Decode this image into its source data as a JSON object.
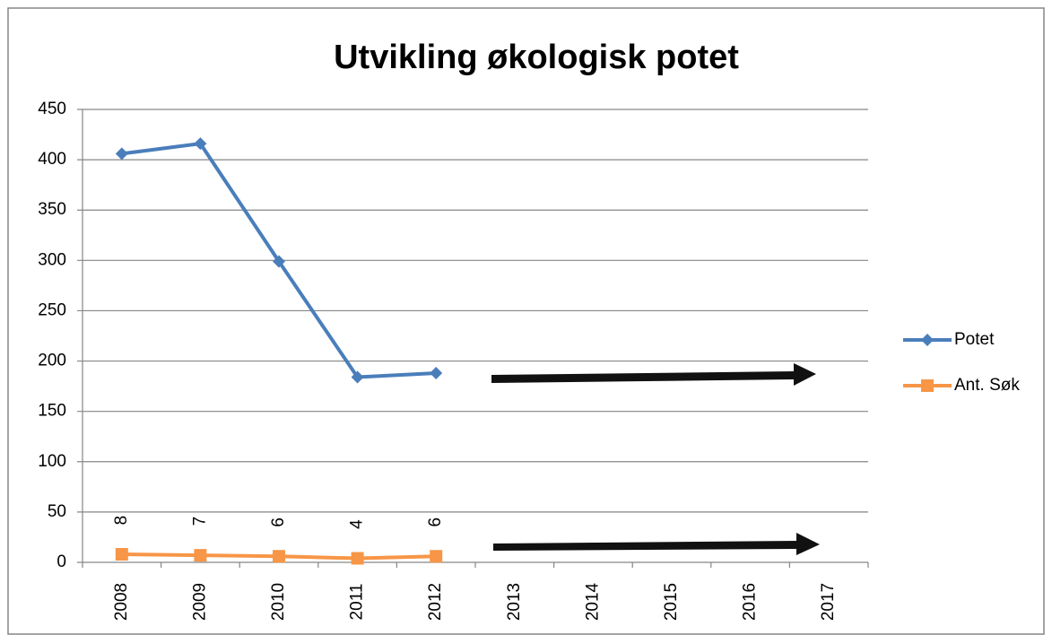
{
  "chart_data": {
    "type": "line",
    "title": "Utvikling økologisk potet",
    "categories": [
      "2008",
      "2009",
      "2010",
      "2011",
      "2012",
      "2013",
      "2014",
      "2015",
      "2016",
      "2017"
    ],
    "series": [
      {
        "name": "Potet",
        "color": "#4a7ebb",
        "marker": "diamond",
        "values": [
          406,
          416,
          299,
          184,
          188,
          null,
          null,
          null,
          null,
          null
        ]
      },
      {
        "name": "Ant. Søk",
        "color": "#f79646",
        "marker": "square",
        "data_labels": true,
        "values": [
          8,
          7,
          6,
          4,
          6,
          null,
          null,
          null,
          null,
          null
        ]
      }
    ],
    "ylim": [
      0,
      450
    ],
    "yticks": [
      0,
      50,
      100,
      150,
      200,
      250,
      300,
      350,
      400,
      450
    ],
    "grid": true,
    "legend": "right"
  }
}
